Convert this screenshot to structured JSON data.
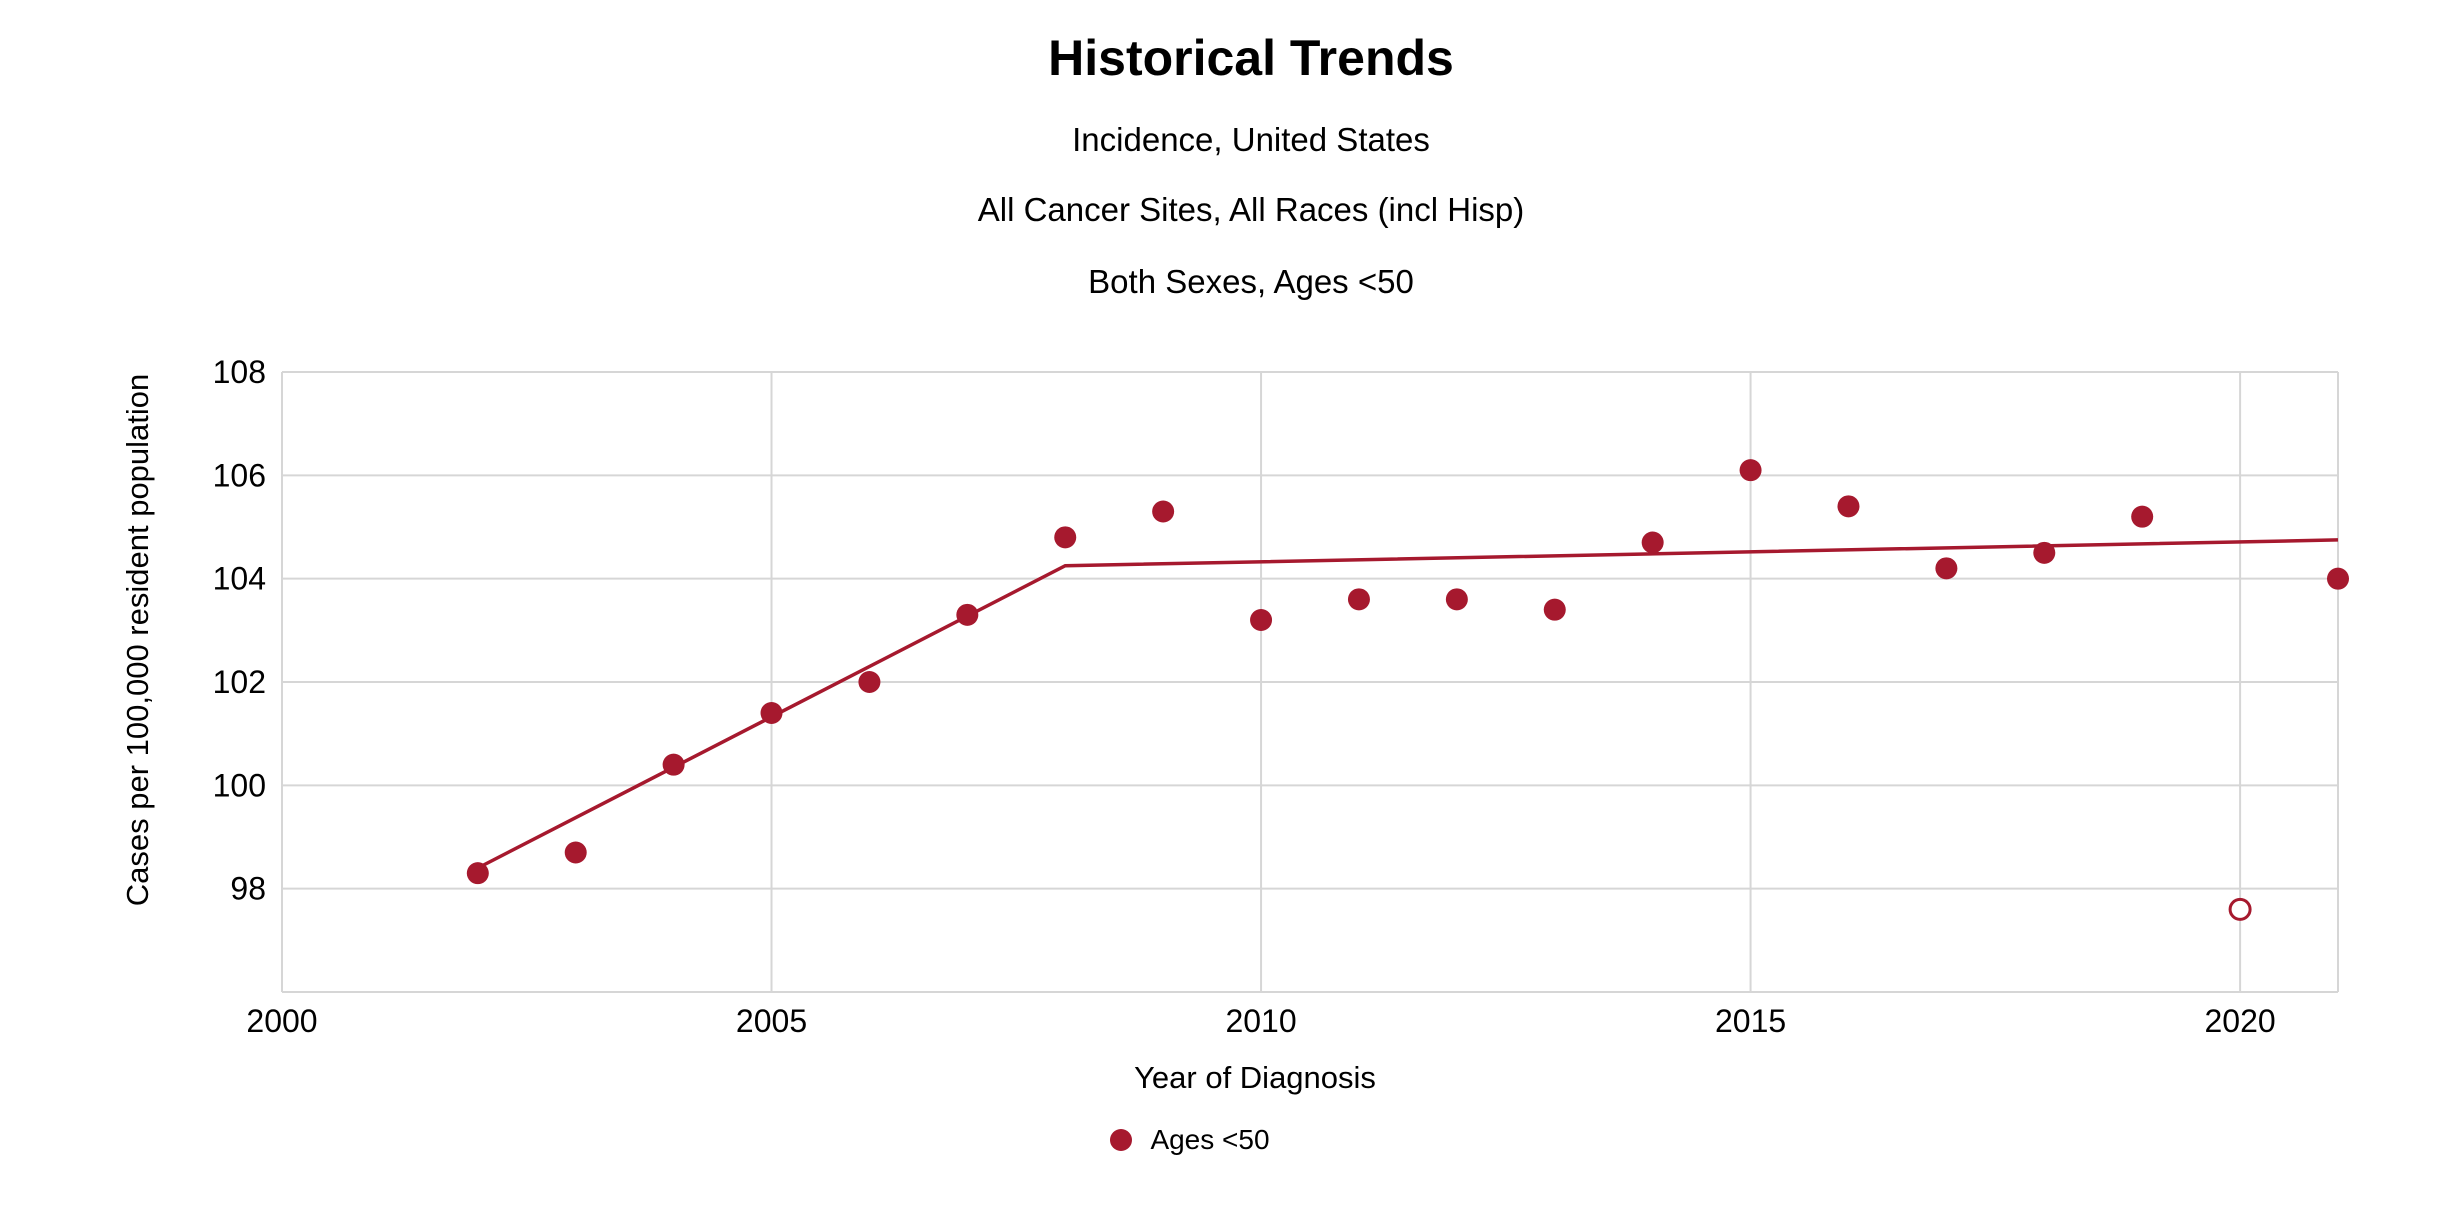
{
  "header": {
    "title": "Historical Trends",
    "subtitles": [
      "Incidence, United States",
      "All Cancer Sites, All Races (incl Hisp)",
      "Both Sexes, Ages <50"
    ]
  },
  "colors": {
    "series": "#A6192E",
    "grid": "#d6d6d6",
    "text": "#000000",
    "background": "#ffffff"
  },
  "chart_data": {
    "type": "scatter",
    "title": "Historical Trends",
    "subtitles": [
      "Incidence, United States",
      "All Cancer Sites, All Races (incl Hisp)",
      "Both Sexes, Ages <50"
    ],
    "xlabel": "Year of Diagnosis",
    "ylabel": "Cases per 100,000 resident population",
    "xlim": [
      2000,
      2021
    ],
    "ylim": [
      96,
      108
    ],
    "x_ticks": [
      2000,
      2005,
      2010,
      2015,
      2020
    ],
    "y_ticks": [
      98,
      100,
      102,
      104,
      106,
      108
    ],
    "grid": true,
    "legend_position": "bottom",
    "series": [
      {
        "name": "Ages <50",
        "marker": "filled-circle",
        "color": "#A6192E",
        "points": [
          {
            "year": 2002,
            "value": 98.3,
            "open": false
          },
          {
            "year": 2003,
            "value": 98.7,
            "open": false
          },
          {
            "year": 2004,
            "value": 100.4,
            "open": false
          },
          {
            "year": 2005,
            "value": 101.4,
            "open": false
          },
          {
            "year": 2006,
            "value": 102.0,
            "open": false
          },
          {
            "year": 2007,
            "value": 103.3,
            "open": false
          },
          {
            "year": 2008,
            "value": 104.8,
            "open": false
          },
          {
            "year": 2009,
            "value": 105.3,
            "open": false
          },
          {
            "year": 2010,
            "value": 103.2,
            "open": false
          },
          {
            "year": 2011,
            "value": 103.6,
            "open": false
          },
          {
            "year": 2012,
            "value": 103.6,
            "open": false
          },
          {
            "year": 2013,
            "value": 103.4,
            "open": false
          },
          {
            "year": 2014,
            "value": 104.7,
            "open": false
          },
          {
            "year": 2015,
            "value": 106.1,
            "open": false
          },
          {
            "year": 2016,
            "value": 105.4,
            "open": false
          },
          {
            "year": 2017,
            "value": 104.2,
            "open": false
          },
          {
            "year": 2018,
            "value": 104.5,
            "open": false
          },
          {
            "year": 2019,
            "value": 105.2,
            "open": false
          },
          {
            "year": 2020,
            "value": 97.6,
            "open": true
          },
          {
            "year": 2021,
            "value": 104.0,
            "open": false
          }
        ]
      }
    ],
    "trend_line": {
      "name": "joinpoint-trend",
      "color": "#A6192E",
      "points": [
        {
          "year": 2002,
          "value": 98.4
        },
        {
          "year": 2008,
          "value": 104.25
        },
        {
          "year": 2021,
          "value": 104.75
        }
      ]
    },
    "legend": [
      {
        "label": "Ages <50",
        "marker": "filled-circle",
        "color": "#A6192E"
      }
    ]
  }
}
